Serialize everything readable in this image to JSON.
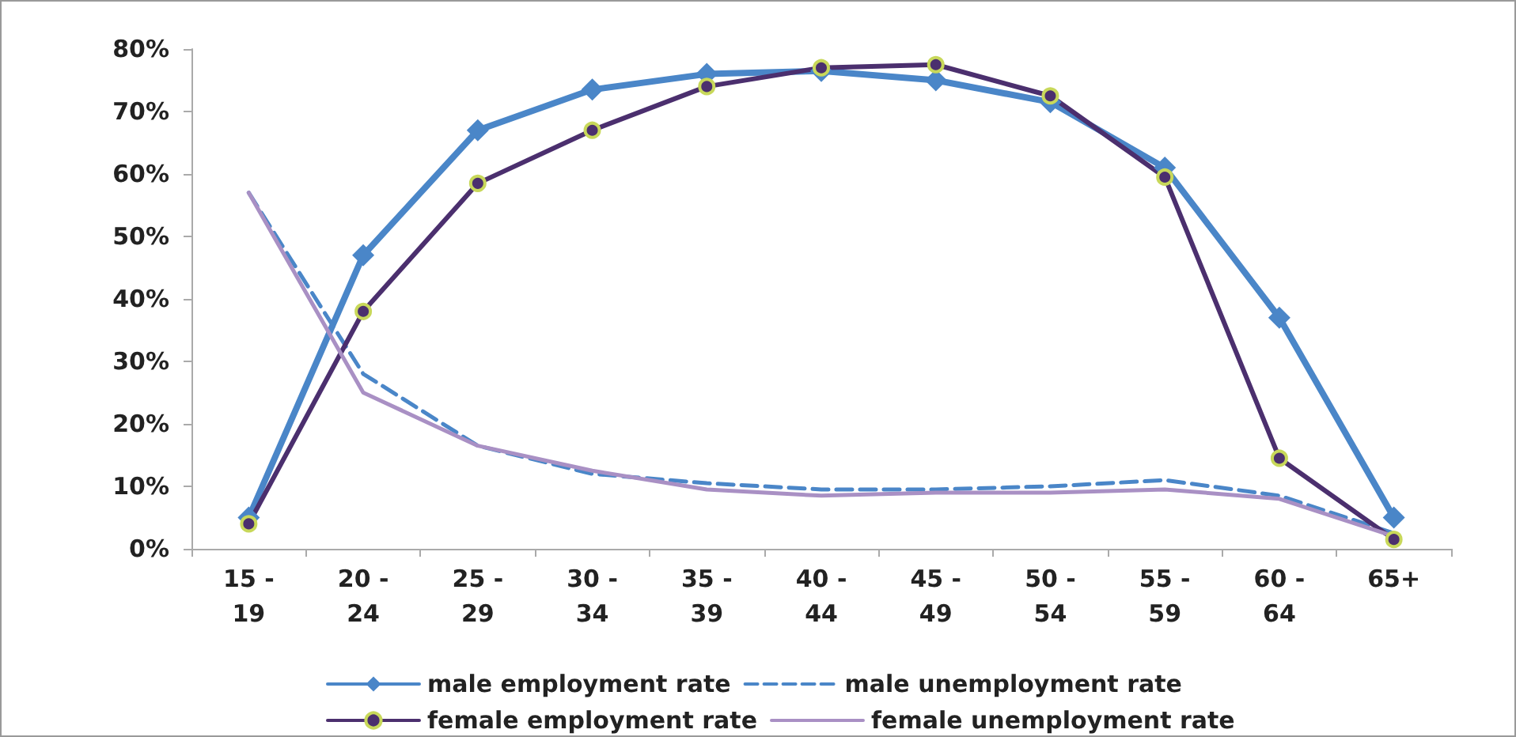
{
  "chart_data": {
    "type": "line",
    "categories": [
      "15 -\n19",
      "20 -\n24",
      "25 -\n29",
      "30 -\n34",
      "35 -\n39",
      "40 -\n44",
      "45 -\n49",
      "50 -\n54",
      "55 -\n59",
      "60 -\n64",
      "65+"
    ],
    "ylim": [
      0,
      80
    ],
    "yticks": [
      {
        "value": 0,
        "label": "0%"
      },
      {
        "value": 10,
        "label": "10%"
      },
      {
        "value": 20,
        "label": "20%"
      },
      {
        "value": 30,
        "label": "30%"
      },
      {
        "value": 40,
        "label": "40%"
      },
      {
        "value": 50,
        "label": "50%"
      },
      {
        "value": 60,
        "label": "60%"
      },
      {
        "value": 70,
        "label": "70%"
      },
      {
        "value": 80,
        "label": "80%"
      }
    ],
    "grid": false,
    "legend": "bottom",
    "series": [
      {
        "name": "male employment rate",
        "color": "#4a86c8",
        "marker": "diamond",
        "line_style": "solid",
        "values": [
          5,
          47,
          67,
          73.5,
          76,
          76.5,
          75,
          71.5,
          61,
          37,
          5
        ]
      },
      {
        "name": "male unemployment rate",
        "color": "#4a86c8",
        "marker": "none",
        "line_style": "dashed",
        "values": [
          57,
          28,
          16.5,
          12,
          10.5,
          9.5,
          9.5,
          10,
          11,
          8.5,
          2.5
        ]
      },
      {
        "name": "female employment rate",
        "color": "#4b2f6e",
        "marker": "circle",
        "line_style": "solid",
        "values": [
          4,
          38,
          58.5,
          67,
          74,
          77,
          77.5,
          72.5,
          59.5,
          14.5,
          1.5
        ]
      },
      {
        "name": "female unemployment rate",
        "color": "#a990c4",
        "marker": "none",
        "line_style": "solid",
        "values": [
          57,
          25,
          16.5,
          12.5,
          9.5,
          8.5,
          9,
          9,
          9.5,
          8,
          2
        ]
      }
    ]
  }
}
